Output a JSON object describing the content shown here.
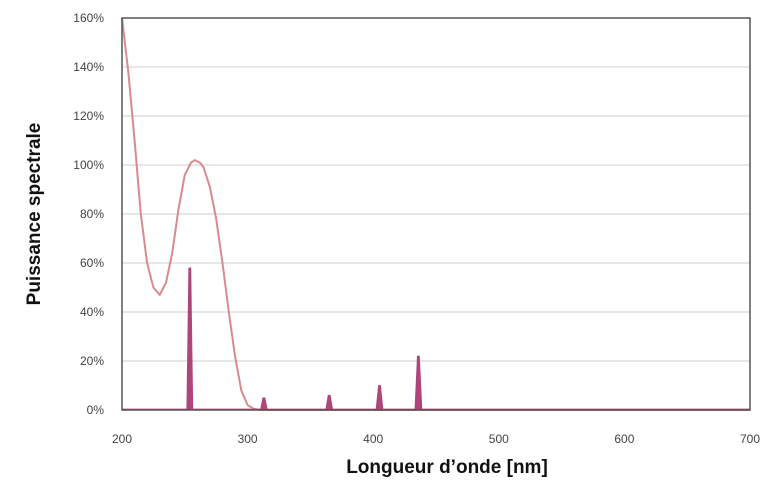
{
  "chart_data": {
    "type": "line",
    "xlabel": "Longueur d’onde [nm]",
    "ylabel": "Puissance spectrale",
    "xlim": [
      200,
      700
    ],
    "ylim": [
      0,
      160
    ],
    "x_ticks": [
      "200",
      "300",
      "400",
      "500",
      "600",
      "700"
    ],
    "y_ticks": [
      "0%",
      "20%",
      "40%",
      "60%",
      "80%",
      "100%",
      "120%",
      "140%",
      "160%"
    ],
    "grid": "horizontal",
    "legend": "none",
    "series": [
      {
        "kind": "continuous",
        "color": "#d88a8f",
        "x": [
          200,
          205,
          210,
          215,
          220,
          225,
          230,
          235,
          240,
          245,
          250,
          255,
          258,
          262,
          265,
          270,
          275,
          280,
          285,
          290,
          295,
          300,
          305,
          310,
          320,
          700
        ],
        "y": [
          160,
          138,
          110,
          80,
          60,
          50,
          47,
          52,
          64,
          82,
          96,
          101,
          102,
          101,
          99,
          91,
          78,
          60,
          40,
          22,
          8,
          2,
          0.5,
          0,
          0,
          0
        ]
      },
      {
        "kind": "emission-lines",
        "color": "#b0457a",
        "x": [
          254,
          313,
          365,
          405,
          436
        ],
        "y": [
          58,
          5,
          6,
          10,
          22
        ]
      }
    ]
  }
}
